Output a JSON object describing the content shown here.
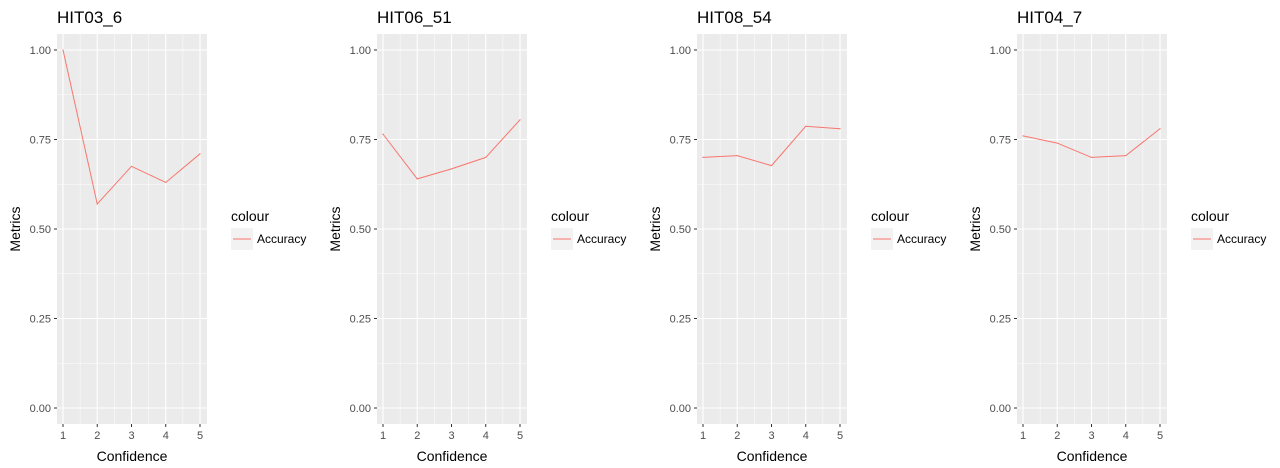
{
  "chart_data": [
    {
      "type": "line",
      "title": "HIT03_6",
      "xlabel": "Confidence",
      "ylabel": "Metrics",
      "x": [
        1,
        2,
        3,
        4,
        5
      ],
      "xlim": [
        1,
        5
      ],
      "ylim": [
        0,
        1
      ],
      "yticks": [
        "0.00",
        "0.25",
        "0.50",
        "0.75",
        "1.00"
      ],
      "xticks": [
        "1",
        "2",
        "3",
        "4",
        "5"
      ],
      "legend": {
        "title": "colour",
        "placement": "right"
      },
      "series": [
        {
          "name": "Accuracy",
          "color": "#f8766d",
          "values": [
            1.0,
            0.57,
            0.675,
            0.63,
            0.71
          ]
        }
      ]
    },
    {
      "type": "line",
      "title": "HIT06_51",
      "xlabel": "Confidence",
      "ylabel": "Metrics",
      "x": [
        1,
        2,
        3,
        4,
        5
      ],
      "xlim": [
        1,
        5
      ],
      "ylim": [
        0,
        1
      ],
      "yticks": [
        "0.00",
        "0.25",
        "0.50",
        "0.75",
        "1.00"
      ],
      "xticks": [
        "1",
        "2",
        "3",
        "4",
        "5"
      ],
      "legend": {
        "title": "colour",
        "placement": "right"
      },
      "series": [
        {
          "name": "Accuracy",
          "color": "#f8766d",
          "values": [
            0.765,
            0.64,
            0.668,
            0.7,
            0.805
          ]
        }
      ]
    },
    {
      "type": "line",
      "title": "HIT08_54",
      "xlabel": "Confidence",
      "ylabel": "Metrics",
      "x": [
        1,
        2,
        3,
        4,
        5
      ],
      "xlim": [
        1,
        5
      ],
      "ylim": [
        0,
        1
      ],
      "yticks": [
        "0.00",
        "0.25",
        "0.50",
        "0.75",
        "1.00"
      ],
      "xticks": [
        "1",
        "2",
        "3",
        "4",
        "5"
      ],
      "legend": {
        "title": "colour",
        "placement": "right"
      },
      "series": [
        {
          "name": "Accuracy",
          "color": "#f8766d",
          "values": [
            0.7,
            0.705,
            0.677,
            0.787,
            0.78
          ]
        }
      ]
    },
    {
      "type": "line",
      "title": "HIT04_7",
      "xlabel": "Confidence",
      "ylabel": "Metrics",
      "x": [
        1,
        2,
        3,
        4,
        5
      ],
      "xlim": [
        1,
        5
      ],
      "ylim": [
        0,
        1
      ],
      "yticks": [
        "0.00",
        "0.25",
        "0.50",
        "0.75",
        "1.00"
      ],
      "xticks": [
        "1",
        "2",
        "3",
        "4",
        "5"
      ],
      "legend": {
        "title": "colour",
        "placement": "right"
      },
      "series": [
        {
          "name": "Accuracy",
          "color": "#f8766d",
          "values": [
            0.76,
            0.74,
            0.7,
            0.705,
            0.78
          ]
        }
      ]
    }
  ],
  "style": {
    "panel_bg": "#ebebeb",
    "grid_major": "#ffffff",
    "tick_color": "#333333"
  }
}
